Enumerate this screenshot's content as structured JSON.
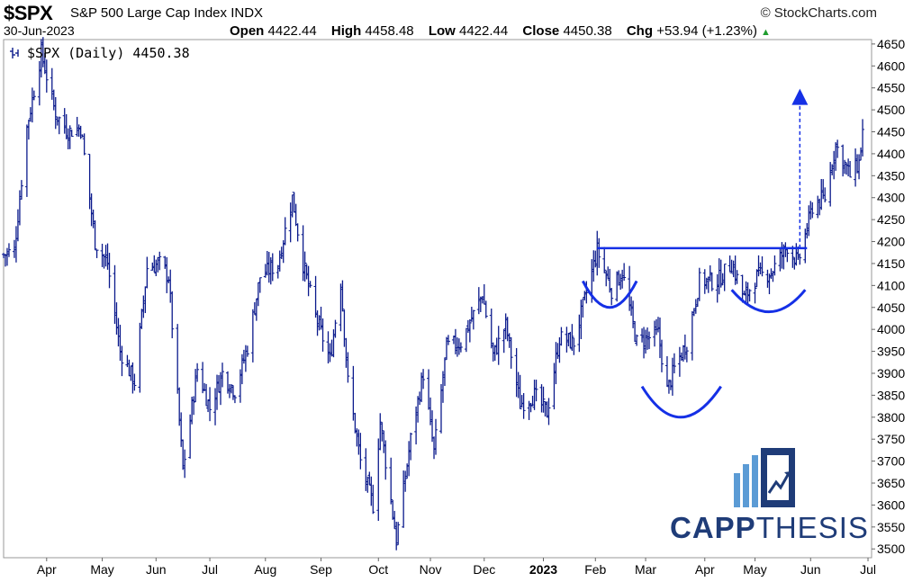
{
  "header": {
    "symbol": "$SPX",
    "name": "S&P 500 Large Cap Index",
    "exchange": "INDX",
    "brand": "© StockCharts.com",
    "date": "30-Jun-2023",
    "open_label": "Open",
    "open": "4422.44",
    "high_label": "High",
    "high": "4458.48",
    "low_label": "Low",
    "low": "4422.44",
    "close_label": "Close",
    "close": "4450.38",
    "chg_label": "Chg",
    "chg": "+53.94 (+1.23%)"
  },
  "legend": {
    "label": "$SPX (Daily) 4450.38"
  },
  "logo": {
    "bold": "CAPP",
    "light": "THESIS"
  },
  "colors": {
    "price": "#0b1a8c",
    "annotation": "#1530e6",
    "logo_dark": "#1f3c78",
    "logo_light": "#5b9bd5"
  },
  "chart_data": {
    "type": "line",
    "series_style": "ohlc-bars",
    "y_axis_side": "right",
    "ylim": [
      3480,
      4660
    ],
    "y_ticks": [
      3500,
      3550,
      3600,
      3650,
      3700,
      3750,
      3800,
      3850,
      3900,
      3950,
      4000,
      4050,
      4100,
      4150,
      4200,
      4250,
      4300,
      4350,
      4400,
      4450,
      4500,
      4550,
      4600,
      4650
    ],
    "x_range": [
      "2022-03-08",
      "2023-07-05"
    ],
    "x_ticks": [
      {
        "date": "2022-04-01",
        "label": "Apr"
      },
      {
        "date": "2022-05-02",
        "label": "May"
      },
      {
        "date": "2022-06-01",
        "label": "Jun"
      },
      {
        "date": "2022-07-01",
        "label": "Jul"
      },
      {
        "date": "2022-08-01",
        "label": "Aug"
      },
      {
        "date": "2022-09-01",
        "label": "Sep"
      },
      {
        "date": "2022-10-03",
        "label": "Oct"
      },
      {
        "date": "2022-11-01",
        "label": "Nov"
      },
      {
        "date": "2022-12-01",
        "label": "Dec"
      },
      {
        "date": "2023-01-03",
        "label": "2023",
        "bold": true
      },
      {
        "date": "2023-02-01",
        "label": "Feb"
      },
      {
        "date": "2023-03-01",
        "label": "Mar"
      },
      {
        "date": "2023-04-03",
        "label": "Apr"
      },
      {
        "date": "2023-05-01",
        "label": "May"
      },
      {
        "date": "2023-06-01",
        "label": "Jun"
      },
      {
        "date": "2023-07-03",
        "label": "Jul"
      }
    ],
    "close_path": [
      [
        "2022-03-08",
        4170
      ],
      [
        "2022-03-14",
        4180
      ],
      [
        "2022-03-21",
        4460
      ],
      [
        "2022-03-29",
        4630
      ],
      [
        "2022-04-06",
        4490
      ],
      [
        "2022-04-13",
        4450
      ],
      [
        "2022-04-20",
        4460
      ],
      [
        "2022-04-28",
        4200
      ],
      [
        "2022-05-05",
        4150
      ],
      [
        "2022-05-12",
        3950
      ],
      [
        "2022-05-20",
        3880
      ],
      [
        "2022-05-27",
        4140
      ],
      [
        "2022-06-03",
        4150
      ],
      [
        "2022-06-08",
        4120
      ],
      [
        "2022-06-16",
        3680
      ],
      [
        "2022-06-24",
        3910
      ],
      [
        "2022-07-01",
        3820
      ],
      [
        "2022-07-08",
        3900
      ],
      [
        "2022-07-15",
        3860
      ],
      [
        "2022-07-22",
        3960
      ],
      [
        "2022-07-29",
        4120
      ],
      [
        "2022-08-08",
        4150
      ],
      [
        "2022-08-16",
        4300
      ],
      [
        "2022-08-22",
        4150
      ],
      [
        "2022-08-29",
        4030
      ],
      [
        "2022-09-06",
        3930
      ],
      [
        "2022-09-12",
        4110
      ],
      [
        "2022-09-16",
        3880
      ],
      [
        "2022-09-23",
        3700
      ],
      [
        "2022-09-30",
        3600
      ],
      [
        "2022-10-04",
        3790
      ],
      [
        "2022-10-13",
        3520
      ],
      [
        "2022-10-21",
        3750
      ],
      [
        "2022-10-28",
        3900
      ],
      [
        "2022-11-03",
        3720
      ],
      [
        "2022-11-10",
        3960
      ],
      [
        "2022-11-18",
        3970
      ],
      [
        "2022-11-30",
        4080
      ],
      [
        "2022-12-06",
        3940
      ],
      [
        "2022-12-13",
        4010
      ],
      [
        "2022-12-21",
        3830
      ],
      [
        "2022-12-29",
        3850
      ],
      [
        "2023-01-05",
        3810
      ],
      [
        "2023-01-12",
        3980
      ],
      [
        "2023-01-20",
        3970
      ],
      [
        "2023-02-02",
        4180
      ],
      [
        "2023-02-10",
        4090
      ],
      [
        "2023-02-16",
        4130
      ],
      [
        "2023-02-24",
        3970
      ],
      [
        "2023-03-08",
        3990
      ],
      [
        "2023-03-13",
        3860
      ],
      [
        "2023-03-17",
        3910
      ],
      [
        "2023-03-24",
        3970
      ],
      [
        "2023-03-31",
        4110
      ],
      [
        "2023-04-10",
        4110
      ],
      [
        "2023-04-18",
        4150
      ],
      [
        "2023-04-25",
        4070
      ],
      [
        "2023-05-02",
        4120
      ],
      [
        "2023-05-10",
        4130
      ],
      [
        "2023-05-19",
        4190
      ],
      [
        "2023-05-25",
        4150
      ],
      [
        "2023-06-02",
        4280
      ],
      [
        "2023-06-09",
        4300
      ],
      [
        "2023-06-15",
        4420
      ],
      [
        "2023-06-23",
        4350
      ],
      [
        "2023-06-28",
        4380
      ],
      [
        "2023-06-30",
        4450
      ]
    ],
    "annotations": {
      "neckline": {
        "from": [
          "2023-02-02",
          4185
        ],
        "to": [
          "2023-05-30",
          4185
        ]
      },
      "left_shoulder": {
        "from": [
          "2023-01-25",
          4110
        ],
        "bottom": [
          "2023-02-09",
          4050
        ],
        "to": [
          "2023-02-24",
          4110
        ]
      },
      "head": {
        "from": [
          "2023-02-27",
          3870
        ],
        "bottom": [
          "2023-03-20",
          3800
        ],
        "to": [
          "2023-04-12",
          3870
        ]
      },
      "right_shoulder": {
        "from": [
          "2023-04-18",
          4090
        ],
        "bottom": [
          "2023-05-09",
          4040
        ],
        "to": [
          "2023-05-29",
          4090
        ]
      },
      "target_arrow": {
        "date": "2023-05-26",
        "from": 4185,
        "to": 4540
      }
    }
  }
}
